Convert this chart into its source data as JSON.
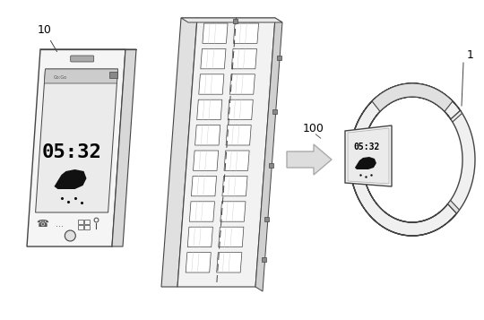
{
  "bg_color": "#ffffff",
  "line_color": "#444444",
  "label_10": "10",
  "label_100": "100",
  "label_1": "1",
  "time_text": "05:32",
  "figsize": [
    5.4,
    3.57
  ],
  "dpi": 100
}
